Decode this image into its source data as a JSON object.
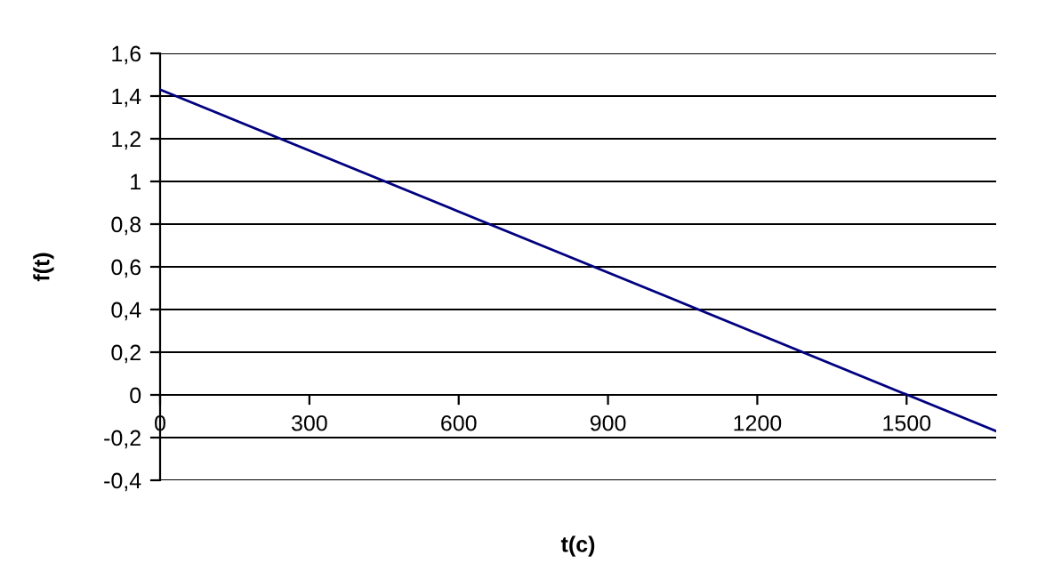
{
  "chart_data": {
    "type": "line",
    "xlabel": "t(c)",
    "ylabel": "f(t)",
    "x": [
      0,
      1680
    ],
    "series": [
      {
        "color": "#000080",
        "values": [
          1.43,
          -0.17
        ]
      }
    ],
    "xlim": [
      0,
      1680
    ],
    "xticks": [
      0,
      300,
      600,
      900,
      1200,
      1500
    ],
    "ylim": [
      -0.4,
      1.6
    ],
    "yticks": [
      {
        "value": -0.4,
        "label": "-0,4"
      },
      {
        "value": -0.2,
        "label": "-0,2"
      },
      0,
      {
        "value": 0.2,
        "label": "0,2"
      },
      {
        "value": 0.4,
        "label": "0,4"
      },
      {
        "value": 0.6,
        "label": "0,6"
      },
      {
        "value": 0.8,
        "label": "0,8"
      },
      1,
      {
        "value": 1.2,
        "label": "1,2"
      },
      {
        "value": 1.4,
        "label": "1,4"
      },
      {
        "value": 1.6,
        "label": "1,6"
      }
    ],
    "grid": "y",
    "marker": "none",
    "line_style": "solid"
  }
}
